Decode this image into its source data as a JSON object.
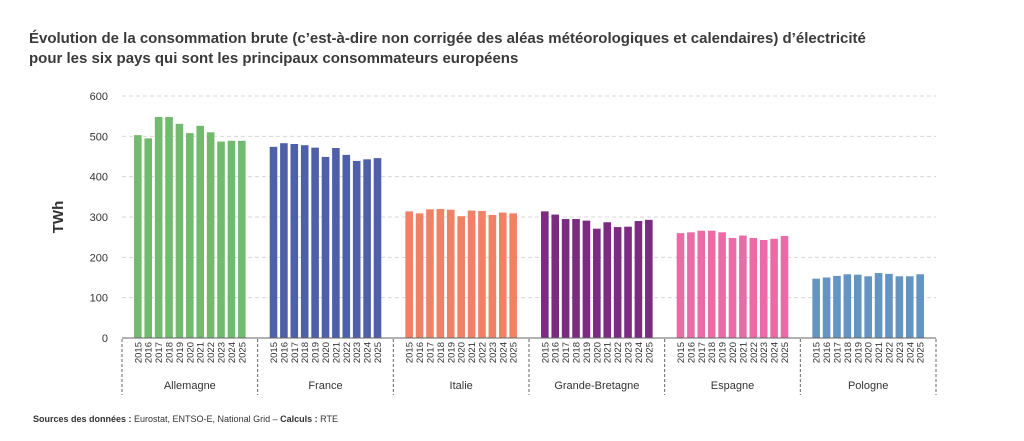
{
  "title_line1": "Évolution de la consommation brute (c’est-à-dire non corrigée des aléas météorologiques et calendaires) d’électricité",
  "title_line2": "pour les six pays qui sont les principaux consommateurs européens",
  "source": {
    "label1": "Sources des données :",
    "text1": " Eurostat, ENTSO-E, National Grid – ",
    "label2": "Calculs :",
    "text2": " RTE"
  },
  "chart_data": {
    "type": "bar",
    "ylabel": "TWh",
    "ylim": [
      0,
      600
    ],
    "yticks": [
      0,
      100,
      200,
      300,
      400,
      500,
      600
    ],
    "grid": true,
    "years": [
      "2015",
      "2016",
      "2017",
      "2018",
      "2019",
      "2020",
      "2021",
      "2022",
      "2023",
      "2024",
      "2025"
    ],
    "groups": [
      {
        "name": "Allemagne",
        "color": "#72bb6e",
        "values": [
          503,
          495,
          548,
          548,
          531,
          508,
          526,
          510,
          487,
          489,
          489
        ]
      },
      {
        "name": "France",
        "color": "#4d60a8",
        "values": [
          474,
          483,
          481,
          478,
          472,
          449,
          471,
          454,
          439,
          443,
          446
        ]
      },
      {
        "name": "Italie",
        "color": "#ef8264",
        "values": [
          314,
          309,
          319,
          320,
          318,
          302,
          316,
          315,
          305,
          311,
          309
        ]
      },
      {
        "name": "Grande-Bretagne",
        "color": "#7b2c81",
        "values": [
          314,
          306,
          295,
          295,
          291,
          271,
          287,
          275,
          276,
          290,
          293
        ]
      },
      {
        "name": "Espagne",
        "color": "#ea6ba6",
        "values": [
          260,
          262,
          266,
          266,
          262,
          248,
          254,
          248,
          243,
          246,
          253
        ]
      },
      {
        "name": "Pologne",
        "color": "#6494c2",
        "values": [
          147,
          150,
          154,
          158,
          157,
          153,
          161,
          159,
          153,
          153,
          158
        ]
      }
    ]
  }
}
